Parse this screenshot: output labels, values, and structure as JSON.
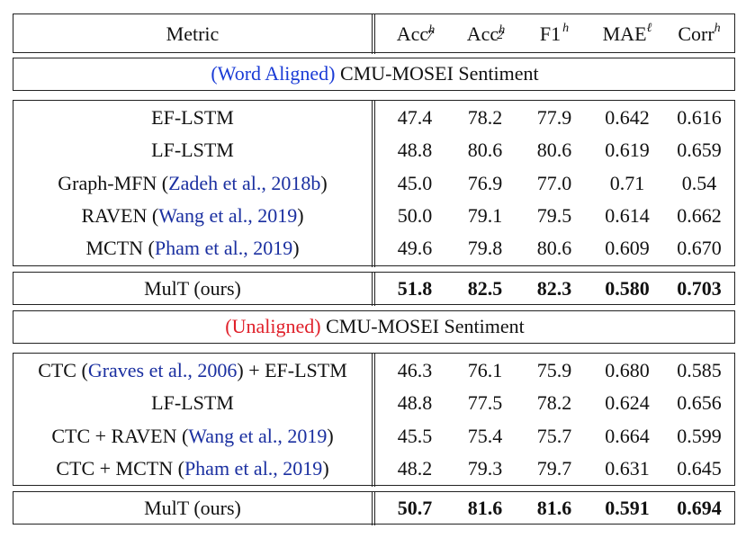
{
  "header": {
    "metric": "Metric",
    "columns": [
      {
        "base": "Acc",
        "sup": "h",
        "sub": "7"
      },
      {
        "base": "Acc",
        "sup": "h",
        "sub": "2"
      },
      {
        "base": "F1",
        "sup": "h",
        "sub": ""
      },
      {
        "base": "MAE",
        "sup": "ℓ",
        "sub": ""
      },
      {
        "base": "Corr",
        "sup": "h",
        "sub": ""
      }
    ]
  },
  "aligned_section": {
    "title_colored": "(Word Aligned)",
    "title_rest": " CMU-MOSEI Sentiment",
    "rows": [
      {
        "metric": "EF-LSTM",
        "cite": "",
        "suffix": "",
        "values": [
          "47.4",
          "78.2",
          "77.9",
          "0.642",
          "0.616"
        ]
      },
      {
        "metric": "LF-LSTM",
        "cite": "",
        "suffix": "",
        "values": [
          "48.8",
          "80.6",
          "80.6",
          "0.619",
          "0.659"
        ]
      },
      {
        "metric": "Graph-MFN (",
        "cite": "Zadeh et al., 2018b",
        "suffix": ")",
        "values": [
          "45.0",
          "76.9",
          "77.0",
          "0.71",
          "0.54"
        ]
      },
      {
        "metric": "RAVEN (",
        "cite": "Wang et al., 2019",
        "suffix": ")",
        "values": [
          "50.0",
          "79.1",
          "79.5",
          "0.614",
          "0.662"
        ]
      },
      {
        "metric": "MCTN (",
        "cite": "Pham et al., 2019",
        "suffix": ")",
        "values": [
          "49.6",
          "79.8",
          "80.6",
          "0.609",
          "0.670"
        ]
      }
    ],
    "ours": {
      "metric": "MulT (ours)",
      "values": [
        "51.8",
        "82.5",
        "82.3",
        "0.580",
        "0.703"
      ]
    }
  },
  "unaligned_section": {
    "title_colored": "(Unaligned)",
    "title_rest": " CMU-MOSEI Sentiment",
    "rows": [
      {
        "metric": "CTC (",
        "cite": "Graves et al., 2006",
        "suffix": ") + EF-LSTM",
        "values": [
          "46.3",
          "76.1",
          "75.9",
          "0.680",
          "0.585"
        ]
      },
      {
        "metric": "LF-LSTM",
        "cite": "",
        "suffix": "",
        "values": [
          "48.8",
          "77.5",
          "78.2",
          "0.624",
          "0.656"
        ]
      },
      {
        "metric": "CTC + RAVEN (",
        "cite": "Wang et al., 2019",
        "suffix": ")",
        "values": [
          "45.5",
          "75.4",
          "75.7",
          "0.664",
          "0.599"
        ]
      },
      {
        "metric": "CTC + MCTN (",
        "cite": "Pham et al., 2019",
        "suffix": ")",
        "values": [
          "48.2",
          "79.3",
          "79.7",
          "0.631",
          "0.645"
        ]
      }
    ],
    "ours": {
      "metric": "MulT (ours)",
      "values": [
        "50.7",
        "81.6",
        "81.6",
        "0.591",
        "0.694"
      ]
    }
  }
}
